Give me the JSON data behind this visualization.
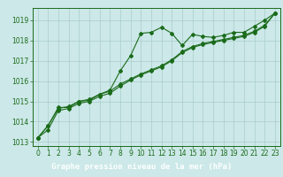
{
  "title": "Graphe pression niveau de la mer (hPa)",
  "bg_color": "#cce8e8",
  "grid_color": "#aacccc",
  "line_color": "#1a6b1a",
  "marker_color": "#1a6b1a",
  "title_bg": "#1a6b1a",
  "title_fg": "#ffffff",
  "xlim": [
    -0.5,
    23.5
  ],
  "ylim": [
    1012.8,
    1019.6
  ],
  "yticks": [
    1013,
    1014,
    1015,
    1016,
    1017,
    1018,
    1019
  ],
  "xticks": [
    0,
    1,
    2,
    3,
    4,
    5,
    6,
    7,
    8,
    9,
    10,
    11,
    12,
    13,
    14,
    15,
    16,
    17,
    18,
    19,
    20,
    21,
    22,
    23
  ],
  "line1_x": [
    0,
    1,
    2,
    3,
    4,
    5,
    6,
    7,
    8,
    9,
    10,
    11,
    12,
    13,
    14,
    15,
    16,
    17,
    18,
    19,
    20,
    21,
    22,
    23
  ],
  "line1_y": [
    1013.2,
    1013.8,
    1014.7,
    1014.7,
    1015.0,
    1015.1,
    1015.35,
    1015.55,
    1016.5,
    1017.25,
    1018.35,
    1018.4,
    1018.65,
    1018.35,
    1017.75,
    1018.3,
    1018.2,
    1018.15,
    1018.25,
    1018.4,
    1018.4,
    1018.7,
    1019.0,
    1019.35
  ],
  "line2_x": [
    0,
    1,
    2,
    3,
    4,
    5,
    6,
    7,
    8,
    9,
    10,
    11,
    12,
    13,
    14,
    15,
    16,
    17,
    18,
    19,
    20,
    21,
    22,
    23
  ],
  "line2_y": [
    1013.2,
    1013.8,
    1014.65,
    1014.75,
    1015.0,
    1015.05,
    1015.35,
    1015.5,
    1015.85,
    1016.1,
    1016.35,
    1016.55,
    1016.75,
    1017.05,
    1017.45,
    1017.7,
    1017.85,
    1017.95,
    1018.05,
    1018.15,
    1018.25,
    1018.45,
    1018.75,
    1019.35
  ],
  "line3_x": [
    0,
    1,
    2,
    3,
    4,
    5,
    6,
    7,
    8,
    9,
    10,
    11,
    12,
    13,
    14,
    15,
    16,
    17,
    18,
    19,
    20,
    21,
    22,
    23
  ],
  "line3_y": [
    1013.2,
    1013.6,
    1014.55,
    1014.65,
    1014.9,
    1015.0,
    1015.25,
    1015.4,
    1015.75,
    1016.05,
    1016.3,
    1016.5,
    1016.7,
    1017.0,
    1017.4,
    1017.65,
    1017.8,
    1017.9,
    1018.0,
    1018.1,
    1018.2,
    1018.4,
    1018.7,
    1019.35
  ],
  "tick_fontsize": 5.5,
  "title_fontsize": 6.5
}
